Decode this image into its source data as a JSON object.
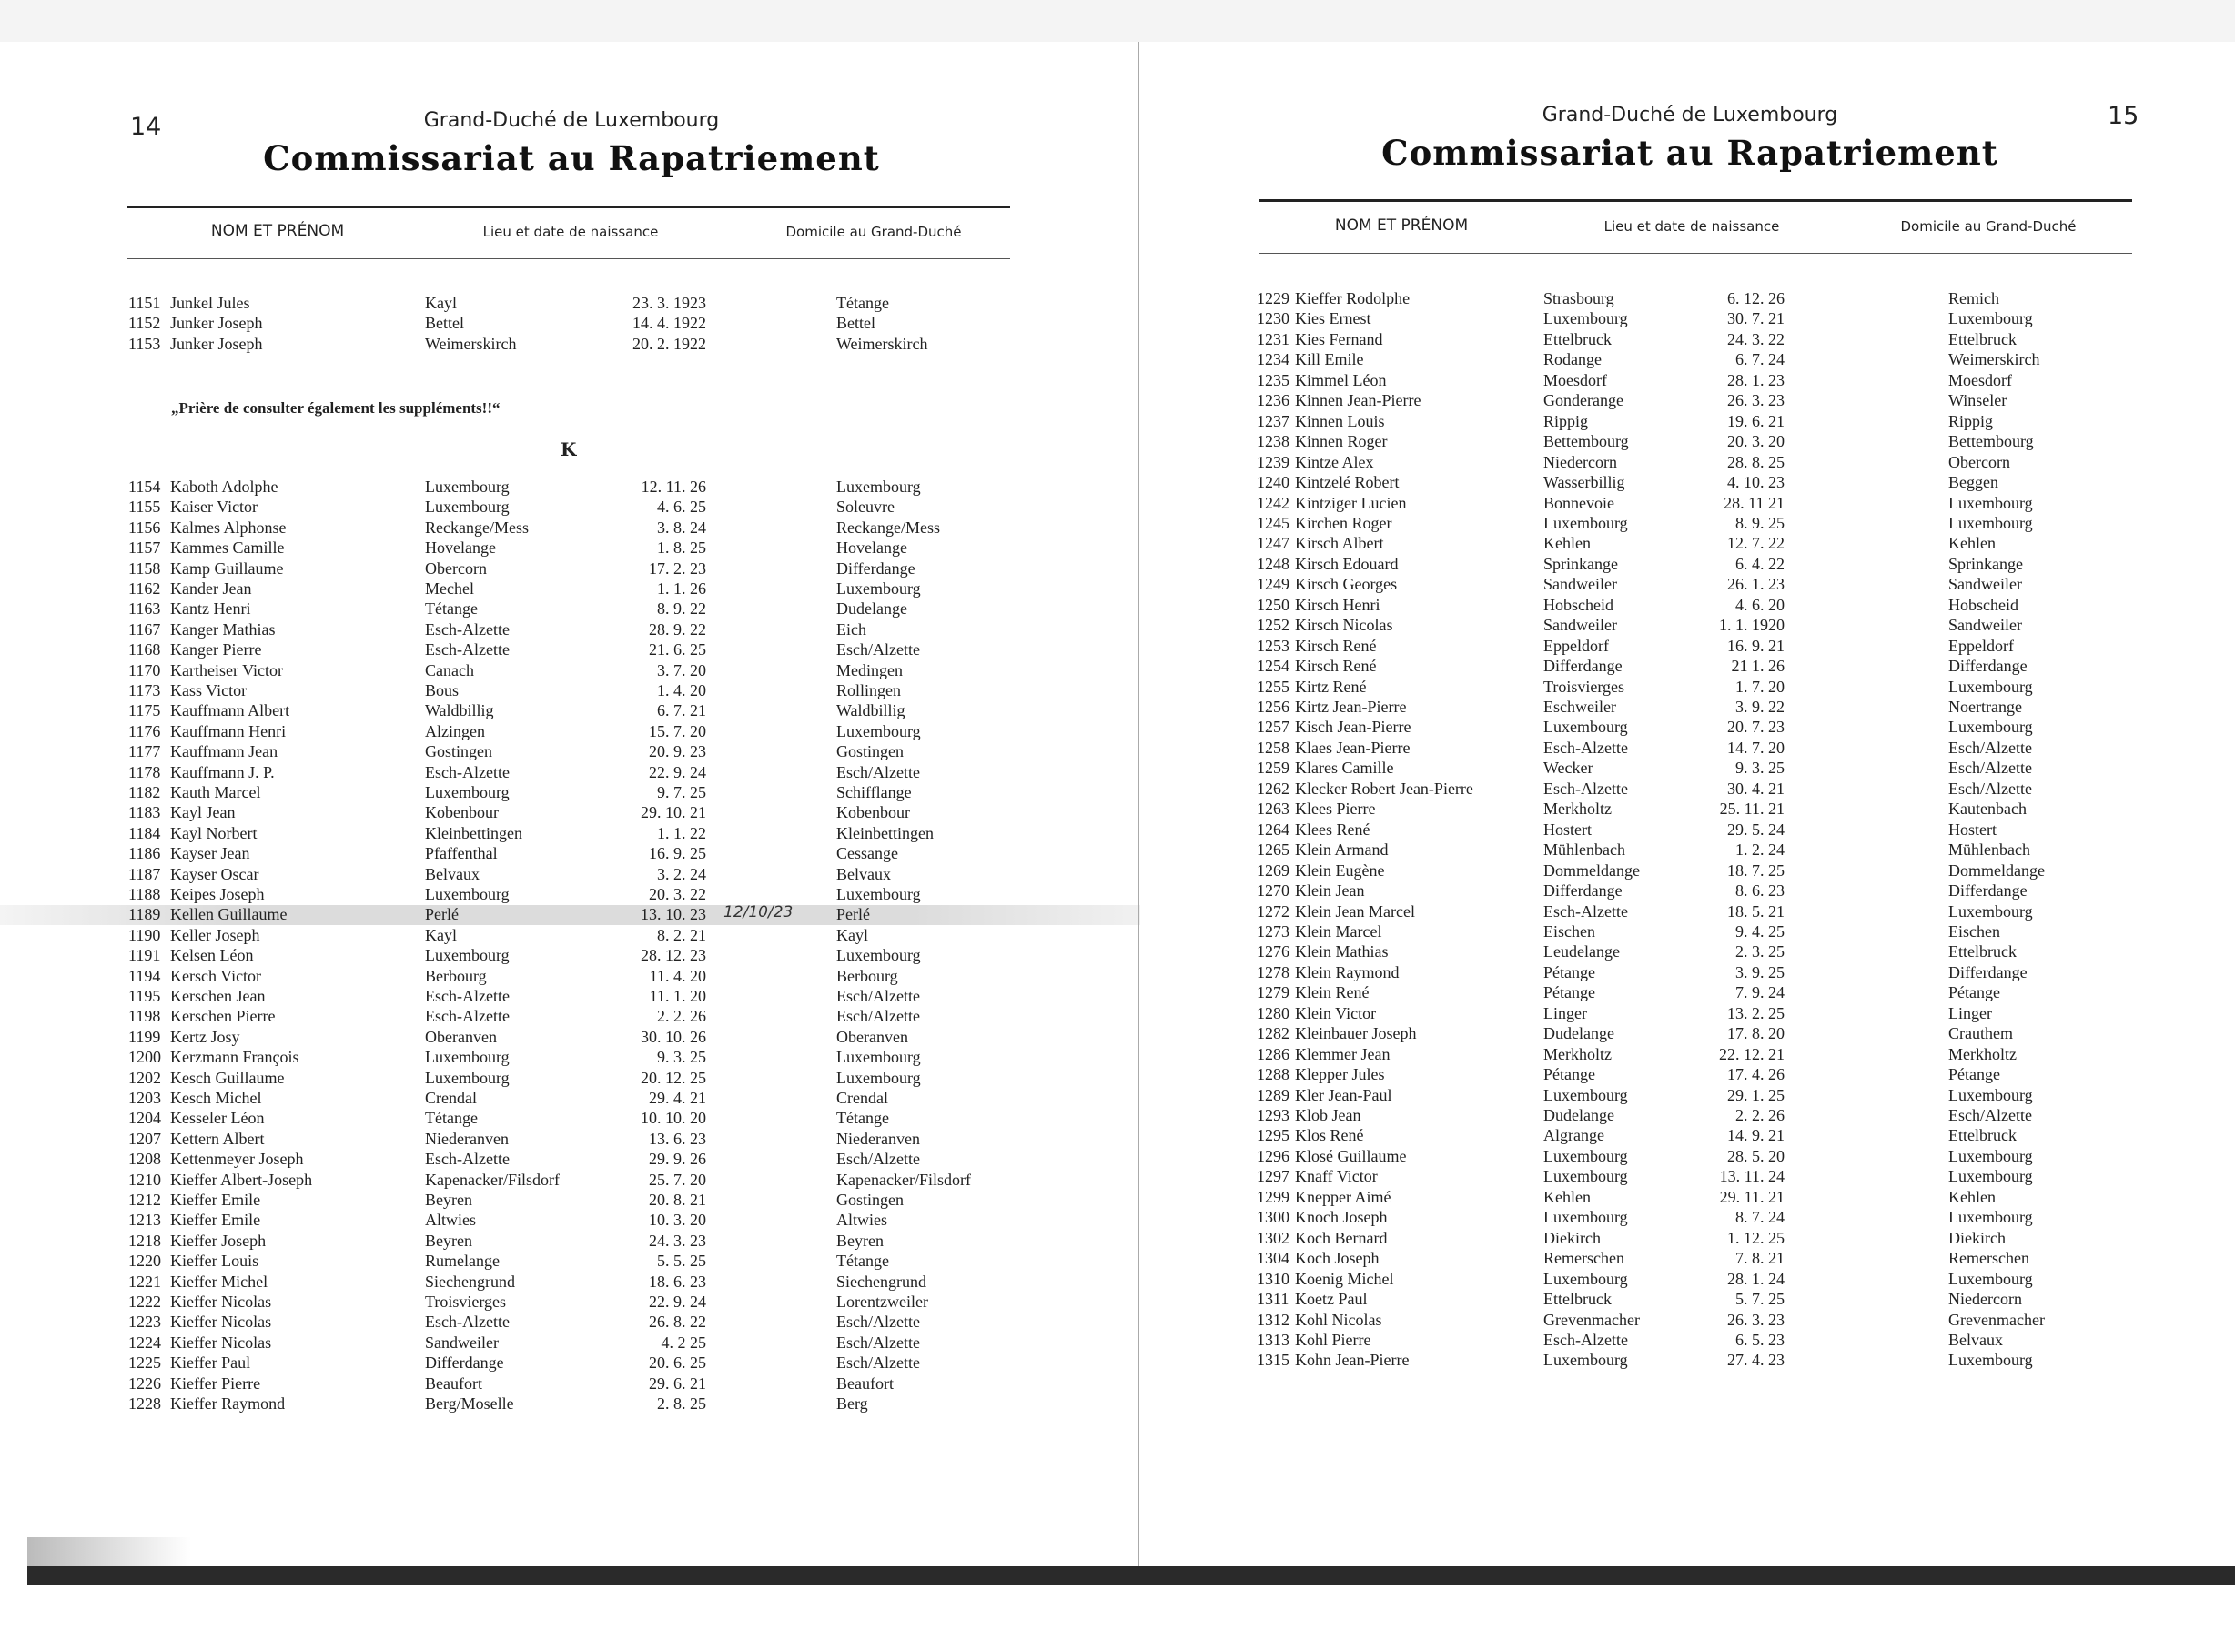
{
  "left": {
    "page_number": "14",
    "header": "Grand-Duché de Luxembourg",
    "title": "Commissariat au Rapatriement",
    "columns": [
      "NOM ET PRÉNOM",
      "Lieu et date de naissance",
      "Domicile au Grand-Duché"
    ],
    "rows_before_note": [
      [
        "1151",
        "Junkel  Jules",
        "Kayl",
        "23.  3. 1923",
        "Tétange"
      ],
      [
        "1152",
        "Junker  Joseph",
        "Bettel",
        "14.  4. 1922",
        "Bettel"
      ],
      [
        "1153",
        "Junker  Joseph",
        "Weimerskirch",
        "20.  2. 1922",
        "Weimerskirch"
      ]
    ],
    "note": "„Prière de consulter également les suppléments!!“",
    "section_letter": "K",
    "rows": [
      [
        "1154",
        "Kaboth  Adolphe",
        "Luxembourg",
        "12. 11. 26",
        "Luxembourg"
      ],
      [
        "1155",
        "Kaiser  Victor",
        "Luxembourg",
        "4.  6. 25",
        "Soleuvre"
      ],
      [
        "1156",
        "Kalmes  Alphonse",
        "Reckange/Mess",
        "3.  8. 24",
        "Reckange/Mess"
      ],
      [
        "1157",
        "Kammes  Camille",
        "Hovelange",
        "1.  8. 25",
        "Hovelange"
      ],
      [
        "1158",
        "Kamp  Guillaume",
        "Obercorn",
        "17.  2. 23",
        "Differdange"
      ],
      [
        "1162",
        "Kander  Jean",
        "Mechel",
        "1.  1. 26",
        "Luxembourg"
      ],
      [
        "1163",
        "Kantz  Henri",
        "Tétange",
        "8.  9. 22",
        "Dudelange"
      ],
      [
        "1167",
        "Kanger  Mathias",
        "Esch-Alzette",
        "28.  9. 22",
        "Eich"
      ],
      [
        "1168",
        "Kanger  Pierre",
        "Esch-Alzette",
        "21.  6. 25",
        "Esch/Alzette"
      ],
      [
        "1170",
        "Kartheiser  Victor",
        "Canach",
        "3.  7. 20",
        "Medingen"
      ],
      [
        "1173",
        "Kass  Victor",
        "Bous",
        "1.  4. 20",
        "Rollingen"
      ],
      [
        "1175",
        "Kauffmann  Albert",
        "Waldbillig",
        "6.  7. 21",
        "Waldbillig"
      ],
      [
        "1176",
        "Kauffmann  Henri",
        "Alzingen",
        "15.  7. 20",
        "Luxembourg"
      ],
      [
        "1177",
        "Kauffmann  Jean",
        "Gostingen",
        "20.  9. 23",
        "Gostingen"
      ],
      [
        "1178",
        "Kauffmann  J. P.",
        "Esch-Alzette",
        "22.  9. 24",
        "Esch/Alzette"
      ],
      [
        "1182",
        "Kauth  Marcel",
        "Luxembourg",
        "9.  7. 25",
        "Schifflange"
      ],
      [
        "1183",
        "Kayl  Jean",
        "Kobenbour",
        "29. 10. 21",
        "Kobenbour"
      ],
      [
        "1184",
        "Kayl  Norbert",
        "Kleinbettingen",
        "1.  1. 22",
        "Kleinbettingen"
      ],
      [
        "1186",
        "Kayser  Jean",
        "Pfaffenthal",
        "16.  9. 25",
        "Cessange"
      ],
      [
        "1187",
        "Kayser  Oscar",
        "Belvaux",
        "3.  2. 24",
        "Belvaux"
      ],
      [
        "1188",
        "Keipes  Joseph",
        "Luxembourg",
        "20.  3. 22",
        "Luxembourg"
      ],
      [
        "1189",
        "Kellen  Guillaume",
        "Perlé",
        "13. 10. 23",
        "Perlé"
      ],
      [
        "1190",
        "Keller  Joseph",
        "Kayl",
        "8.  2. 21",
        "Kayl"
      ],
      [
        "1191",
        "Kelsen  Léon",
        "Luxembourg",
        "28. 12. 23",
        "Luxembourg"
      ],
      [
        "1194",
        "Kersch  Victor",
        "Berbourg",
        "11.  4. 20",
        "Berbourg"
      ],
      [
        "1195",
        "Kerschen  Jean",
        "Esch-Alzette",
        "11.  1. 20",
        "Esch/Alzette"
      ],
      [
        "1198",
        "Kerschen  Pierre",
        "Esch-Alzette",
        "2.  2. 26",
        "Esch/Alzette"
      ],
      [
        "1199",
        "Kertz  Josy",
        "Oberanven",
        "30. 10. 26",
        "Oberanven"
      ],
      [
        "1200",
        "Kerzmann  François",
        "Luxembourg",
        "9.  3. 25",
        "Luxembourg"
      ],
      [
        "1202",
        "Kesch  Guillaume",
        "Luxembourg",
        "20. 12. 25",
        "Luxembourg"
      ],
      [
        "1203",
        "Kesch  Michel",
        "Crendal",
        "29.  4. 21",
        "Crendal"
      ],
      [
        "1204",
        "Kesseler  Léon",
        "Tétange",
        "10. 10. 20",
        "Tétange"
      ],
      [
        "1207",
        "Kettern  Albert",
        "Niederanven",
        "13.  6. 23",
        "Niederanven"
      ],
      [
        "1208",
        "Kettenmeyer  Joseph",
        "Esch-Alzette",
        "29.  9. 26",
        "Esch/Alzette"
      ],
      [
        "1210",
        "Kieffer  Albert-Joseph",
        "Kapenacker/Filsdorf",
        "25.  7. 20",
        "Kapenacker/Filsdorf"
      ],
      [
        "1212",
        "Kieffer  Emile",
        "Beyren",
        "20.  8. 21",
        "Gostingen"
      ],
      [
        "1213",
        "Kieffer  Emile",
        "Altwies",
        "10.  3. 20",
        "Altwies"
      ],
      [
        "1218",
        "Kieffer  Joseph",
        "Beyren",
        "24.  3. 23",
        "Beyren"
      ],
      [
        "1220",
        "Kieffer  Louis",
        "Rumelange",
        "5.  5. 25",
        "Tétange"
      ],
      [
        "1221",
        "Kieffer  Michel",
        "Siechengrund",
        "18.  6. 23",
        "Siechengrund"
      ],
      [
        "1222",
        "Kieffer  Nicolas",
        "Troisvierges",
        "22.  9. 24",
        "Lorentzweiler"
      ],
      [
        "1223",
        "Kieffer  Nicolas",
        "Esch-Alzette",
        "26.  8. 22",
        "Esch/Alzette"
      ],
      [
        "1224",
        "Kieffer  Nicolas",
        "Sandweiler",
        "4.  2 25",
        "Esch/Alzette"
      ],
      [
        "1225",
        "Kieffer  Paul",
        "Differdange",
        "20.  6. 25",
        "Esch/Alzette"
      ],
      [
        "1226",
        "Kieffer  Pierre",
        "Beaufort",
        "29.  6. 21",
        "Beaufort"
      ],
      [
        "1228",
        "Kieffer  Raymond",
        "Berg/Moselle",
        "2.  8. 25",
        "Berg"
      ]
    ],
    "highlighted_row": "1189",
    "handwritten_note": "12/10/23"
  },
  "right": {
    "page_number": "15",
    "header": "Grand-Duché de Luxembourg",
    "title": "Commissariat au Rapatriement",
    "columns": [
      "NOM ET PRÉNOM",
      "Lieu et date de naissance",
      "Domicile au Grand-Duché"
    ],
    "rows": [
      [
        "1229",
        "Kieffer  Rodolphe",
        "Strasbourg",
        "6. 12. 26",
        "Remich"
      ],
      [
        "1230",
        "Kies  Ernest",
        "Luxembourg",
        "30.  7. 21",
        "Luxembourg"
      ],
      [
        "1231",
        "Kies  Fernand",
        "Ettelbruck",
        "24.  3. 22",
        "Ettelbruck"
      ],
      [
        "1234",
        "Kill  Emile",
        "Rodange",
        "6.  7. 24",
        "Weimerskirch"
      ],
      [
        "1235",
        "Kimmel  Léon",
        "Moesdorf",
        "28.  1. 23",
        "Moesdorf"
      ],
      [
        "1236",
        "Kinnen  Jean-Pierre",
        "Gonderange",
        "26.  3. 23",
        "Winseler"
      ],
      [
        "1237",
        "Kinnen  Louis",
        "Rippig",
        "19.  6. 21",
        "Rippig"
      ],
      [
        "1238",
        "Kinnen  Roger",
        "Bettembourg",
        "20.  3. 20",
        "Bettembourg"
      ],
      [
        "1239",
        "Kintze  Alex",
        "Niedercorn",
        "28.  8. 25",
        "Obercorn"
      ],
      [
        "1240",
        "Kintzelé  Robert",
        "Wasserbillig",
        "4. 10. 23",
        "Beggen"
      ],
      [
        "1242",
        "Kintziger  Lucien",
        "Bonnevoie",
        "28. 11 21",
        "Luxembourg"
      ],
      [
        "1245",
        "Kirchen  Roger",
        "Luxembourg",
        "8.  9. 25",
        "Luxembourg"
      ],
      [
        "1247",
        "Kirsch  Albert",
        "Kehlen",
        "12.  7. 22",
        "Kehlen"
      ],
      [
        "1248",
        "Kirsch  Edouard",
        "Sprinkange",
        "6.  4. 22",
        "Sprinkange"
      ],
      [
        "1249",
        "Kirsch  Georges",
        "Sandweiler",
        "26.  1. 23",
        "Sandweiler"
      ],
      [
        "1250",
        "Kirsch  Henri",
        "Hobscheid",
        "4.  6. 20",
        "Hobscheid"
      ],
      [
        "1252",
        "Kirsch  Nicolas",
        "Sandweiler",
        "1.  1. 1920",
        "Sandweiler"
      ],
      [
        "1253",
        "Kirsch  René",
        "Eppeldorf",
        "16.  9. 21",
        "Eppeldorf"
      ],
      [
        "1254",
        "Kirsch  René",
        "Differdange",
        "21  1. 26",
        "Differdange"
      ],
      [
        "1255",
        "Kirtz  René",
        "Troisvierges",
        "1.  7. 20",
        "Luxembourg"
      ],
      [
        "1256",
        "Kirtz  Jean-Pierre",
        "Eschweiler",
        "3.  9. 22",
        "Noertrange"
      ],
      [
        "1257",
        "Kisch  Jean-Pierre",
        "Luxembourg",
        "20.  7. 23",
        "Luxembourg"
      ],
      [
        "1258",
        "Klaes  Jean-Pierre",
        "Esch-Alzette",
        "14.  7. 20",
        "Esch/Alzette"
      ],
      [
        "1259",
        "Klares  Camille",
        "Wecker",
        "9.  3. 25",
        "Esch/Alzette"
      ],
      [
        "1262",
        "Klecker  Robert  Jean-Pierre",
        "Esch-Alzette",
        "30.  4. 21",
        "Esch/Alzette"
      ],
      [
        "1263",
        "Klees  Pierre",
        "Merkholtz",
        "25. 11. 21",
        "Kautenbach"
      ],
      [
        "1264",
        "Klees  René",
        "Hostert",
        "29.  5. 24",
        "Hostert"
      ],
      [
        "1265",
        "Klein  Armand",
        "Mühlenbach",
        "1.  2. 24",
        "Mühlenbach"
      ],
      [
        "1269",
        "Klein  Eugène",
        "Dommeldange",
        "18.  7. 25",
        "Dommeldange"
      ],
      [
        "1270",
        "Klein  Jean",
        "Differdange",
        "8.  6. 23",
        "Differdange"
      ],
      [
        "1272",
        "Klein  Jean  Marcel",
        "Esch-Alzette",
        "18.  5. 21",
        "Luxembourg"
      ],
      [
        "1273",
        "Klein  Marcel",
        "Eischen",
        "9.  4. 25",
        "Eischen"
      ],
      [
        "1276",
        "Klein  Mathias",
        "Leudelange",
        "2.  3. 25",
        "Ettelbruck"
      ],
      [
        "1278",
        "Klein  Raymond",
        "Pétange",
        "3.  9. 25",
        "Differdange"
      ],
      [
        "1279",
        "Klein  René",
        "Pétange",
        "7.  9. 24",
        "Pétange"
      ],
      [
        "1280",
        "Klein  Victor",
        "Linger",
        "13.  2. 25",
        "Linger"
      ],
      [
        "1282",
        "Kleinbauer  Joseph",
        "Dudelange",
        "17.  8. 20",
        "Crauthem"
      ],
      [
        "1286",
        "Klemmer  Jean",
        "Merkholtz",
        "22. 12. 21",
        "Merkholtz"
      ],
      [
        "1288",
        "Klepper  Jules",
        "Pétange",
        "17.  4. 26",
        "Pétange"
      ],
      [
        "1289",
        "Kler  Jean-Paul",
        "Luxembourg",
        "29.  1. 25",
        "Luxembourg"
      ],
      [
        "1293",
        "Klob  Jean",
        "Dudelange",
        "2.  2. 26",
        "Esch/Alzette"
      ],
      [
        "1295",
        "Klos  René",
        "Algrange",
        "14.  9. 21",
        "Ettelbruck"
      ],
      [
        "1296",
        "Klosé  Guillaume",
        "Luxembourg",
        "28.  5. 20",
        "Luxembourg"
      ],
      [
        "1297",
        "Knaff  Victor",
        "Luxembourg",
        "13. 11. 24",
        "Luxembourg"
      ],
      [
        "1299",
        "Knepper  Aimé",
        "Kehlen",
        "29. 11. 21",
        "Kehlen"
      ],
      [
        "1300",
        "Knoch  Joseph",
        "Luxembourg",
        "8.  7. 24",
        "Luxembourg"
      ],
      [
        "1302",
        "Koch  Bernard",
        "Diekirch",
        "1. 12. 25",
        "Diekirch"
      ],
      [
        "1304",
        "Koch  Joseph",
        "Remerschen",
        "7.  8. 21",
        "Remerschen"
      ],
      [
        "1310",
        "Koenig  Michel",
        "Luxembourg",
        "28.  1. 24",
        "Luxembourg"
      ],
      [
        "1311",
        "Koetz  Paul",
        "Ettelbruck",
        "5.  7. 25",
        "Niedercorn"
      ],
      [
        "1312",
        "Kohl  Nicolas",
        "Grevenmacher",
        "26.  3. 23",
        "Grevenmacher"
      ],
      [
        "1313",
        "Kohl  Pierre",
        "Esch-Alzette",
        "6.  5. 23",
        "Belvaux"
      ],
      [
        "1315",
        "Kohn  Jean-Pierre",
        "Luxembourg",
        "27.  4. 23",
        "Luxembourg"
      ]
    ]
  }
}
